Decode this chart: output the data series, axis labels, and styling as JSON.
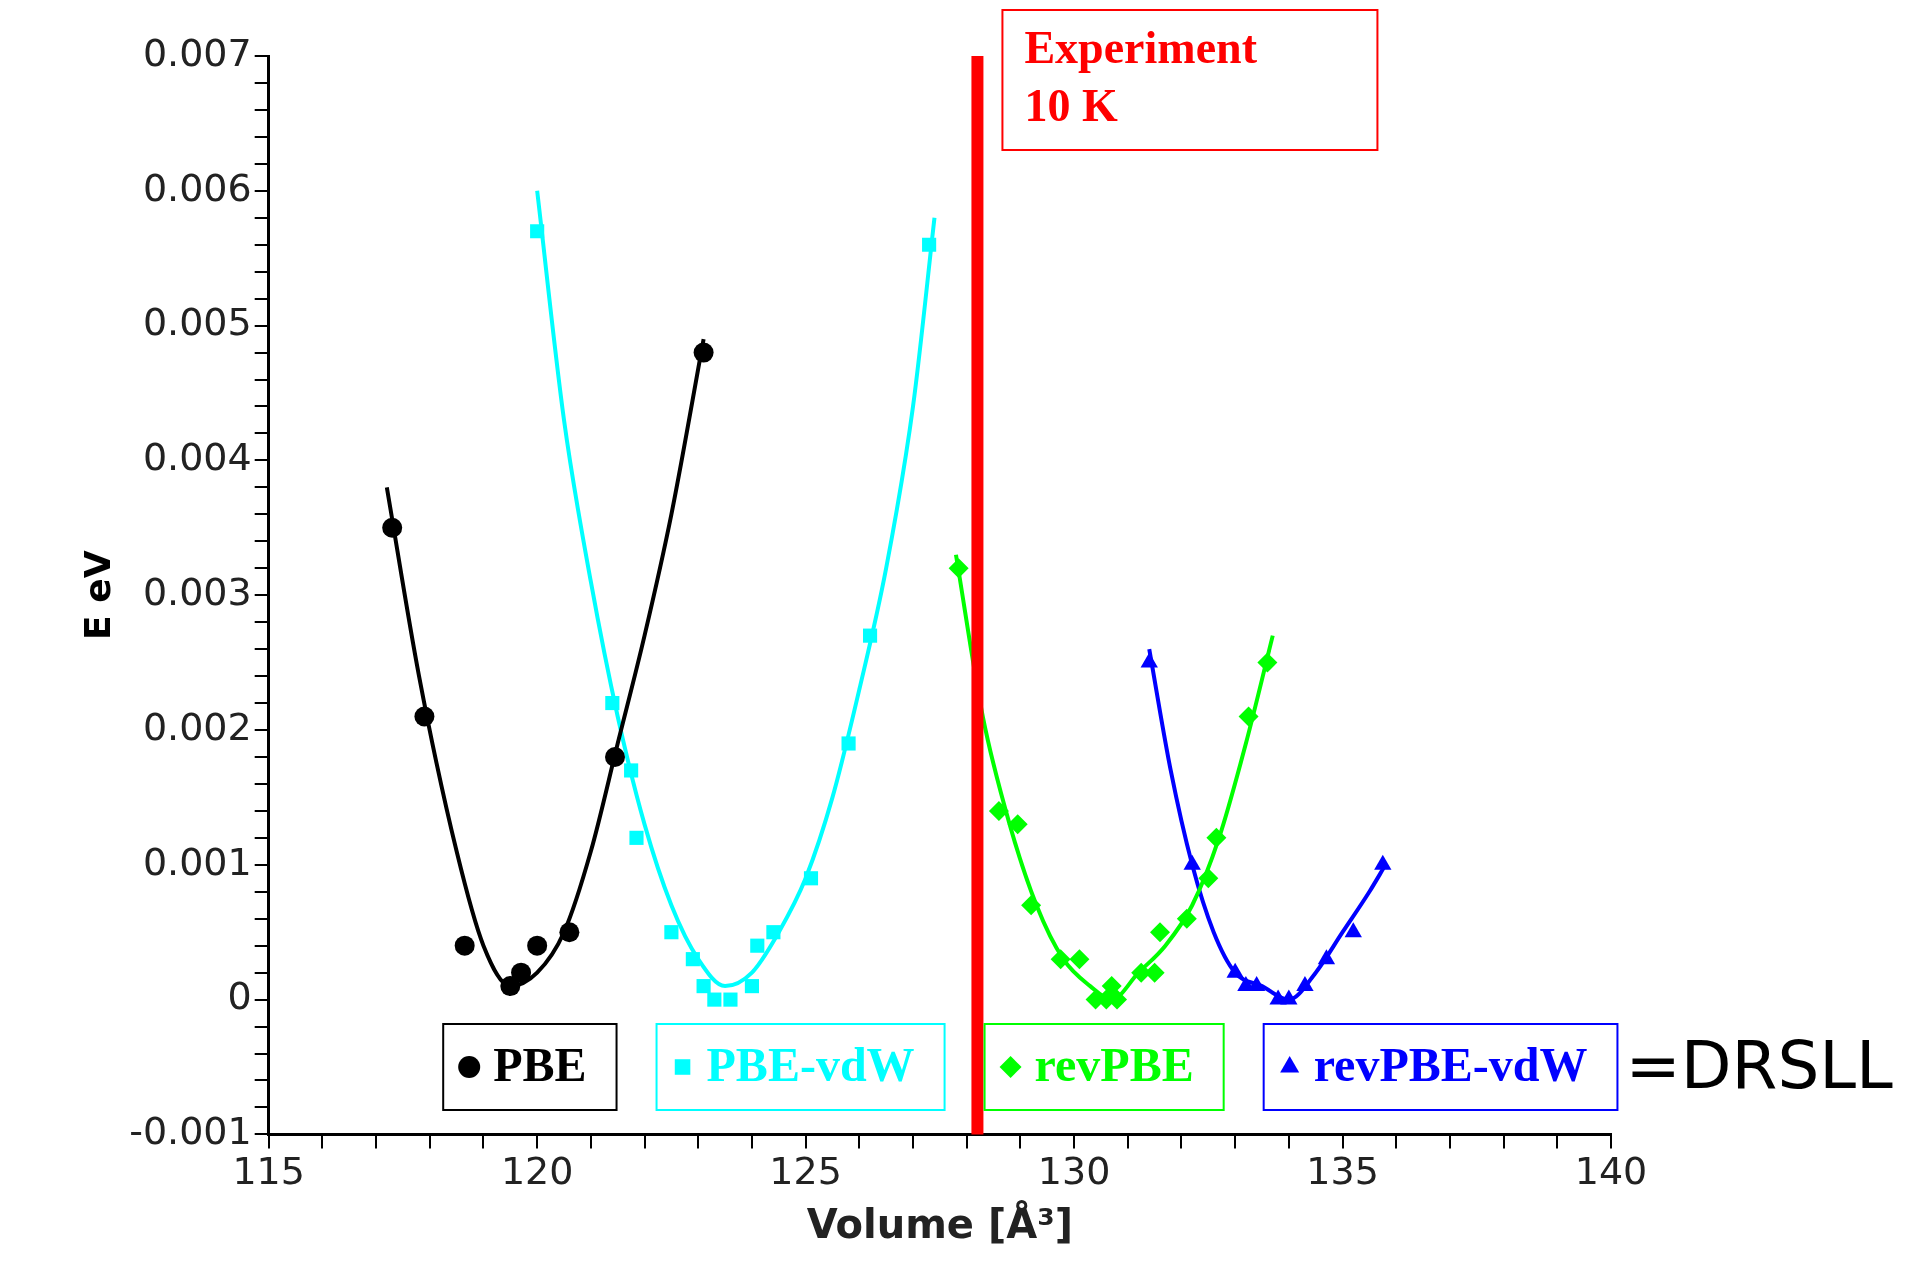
{
  "chart_data": {
    "type": "scatter",
    "xlabel": "Volume [Å³]",
    "ylabel": "E eV",
    "xlim": [
      115,
      140
    ],
    "ylim": [
      -0.001,
      0.007
    ],
    "xticks": [
      115,
      {
        "value": 116,
        "label": null
      },
      {
        "value": 117,
        "label": null
      },
      {
        "value": 118,
        "label": null
      },
      {
        "value": 119,
        "label": null
      },
      120,
      {
        "value": 121,
        "label": null
      },
      {
        "value": 122,
        "label": null
      },
      {
        "value": 123,
        "label": null
      },
      {
        "value": 124,
        "label": null
      },
      125,
      {
        "value": 126,
        "label": null
      },
      {
        "value": 127,
        "label": null
      },
      {
        "value": 128,
        "label": null
      },
      {
        "value": 129,
        "label": null
      },
      130,
      {
        "value": 131,
        "label": null
      },
      {
        "value": 132,
        "label": null
      },
      {
        "value": 133,
        "label": null
      },
      {
        "value": 134,
        "label": null
      },
      135,
      {
        "value": 136,
        "label": null
      },
      {
        "value": 137,
        "label": null
      },
      {
        "value": 138,
        "label": null
      },
      {
        "value": 139,
        "label": null
      },
      140
    ],
    "yticks": [
      -0.001,
      {
        "value": -0.0008,
        "label": null
      },
      {
        "value": -0.0006,
        "label": null
      },
      {
        "value": -0.0004,
        "label": null
      },
      {
        "value": -0.0002,
        "label": null
      },
      0,
      {
        "value": 0.0002,
        "label": null
      },
      {
        "value": 0.0004,
        "label": null
      },
      {
        "value": 0.0006,
        "label": null
      },
      {
        "value": 0.0008,
        "label": null
      },
      0.001,
      {
        "value": 0.0012,
        "label": null
      },
      {
        "value": 0.0014,
        "label": null
      },
      {
        "value": 0.0016,
        "label": null
      },
      {
        "value": 0.0018,
        "label": null
      },
      0.002,
      {
        "value": 0.0022,
        "label": null
      },
      {
        "value": 0.0024,
        "label": null
      },
      {
        "value": 0.0026,
        "label": null
      },
      {
        "value": 0.0028,
        "label": null
      },
      0.003,
      {
        "value": 0.0032,
        "label": null
      },
      {
        "value": 0.0034,
        "label": null
      },
      {
        "value": 0.0036,
        "label": null
      },
      {
        "value": 0.0038,
        "label": null
      },
      0.004,
      {
        "value": 0.0042,
        "label": null
      },
      {
        "value": 0.0044,
        "label": null
      },
      {
        "value": 0.0046,
        "label": null
      },
      {
        "value": 0.0048,
        "label": null
      },
      0.005,
      {
        "value": 0.0052,
        "label": null
      },
      {
        "value": 0.0054,
        "label": null
      },
      {
        "value": 0.0056,
        "label": null
      },
      {
        "value": 0.0058,
        "label": null
      },
      0.006,
      {
        "value": 0.0062,
        "label": null
      },
      {
        "value": 0.0064,
        "label": null
      },
      {
        "value": 0.0066,
        "label": null
      },
      {
        "value": 0.0068,
        "label": null
      },
      0.007
    ],
    "grid": false,
    "legend": "bottom",
    "series": [
      {
        "type": "line",
        "color": "#000000",
        "marker": "none",
        "x": [
          117.2,
          117.8,
          118.5,
          119.0,
          119.5,
          120.0,
          120.5,
          121.0,
          121.5,
          122.0,
          122.5,
          123.1
        ],
        "values": [
          0.0038,
          0.0024,
          0.0011,
          0.0004,
          0.0001,
          0.0002,
          0.0005,
          0.0011,
          0.0019,
          0.0027,
          0.0036,
          0.0049
        ]
      },
      {
        "type": "line",
        "color": "#00ffff",
        "marker": "none",
        "x": [
          120.0,
          120.5,
          121.0,
          121.5,
          122.0,
          122.5,
          123.0,
          123.5,
          124.0,
          124.5,
          125.0,
          125.5,
          126.0,
          126.5,
          127.0,
          127.4
        ],
        "values": [
          0.006,
          0.0043,
          0.0031,
          0.0021,
          0.0013,
          0.0007,
          0.0003,
          0.0001,
          0.0002,
          0.0005,
          0.0009,
          0.0015,
          0.0023,
          0.0032,
          0.0044,
          0.0058
        ]
      },
      {
        "type": "line",
        "color": "#00ff00",
        "marker": "none",
        "x": [
          127.8,
          128.3,
          128.8,
          129.3,
          129.8,
          130.3,
          130.7,
          131.2,
          131.7,
          132.2,
          132.7,
          133.2,
          133.7
        ],
        "values": [
          0.0033,
          0.0021,
          0.0013,
          0.0007,
          0.0003,
          0.0001,
          0.0,
          0.0002,
          0.0004,
          0.0007,
          0.0012,
          0.0019,
          0.0027
        ]
      },
      {
        "type": "line",
        "color": "#0000ff",
        "marker": "none",
        "x": [
          131.4,
          131.8,
          132.2,
          132.6,
          133.0,
          133.5,
          134.0,
          134.5,
          135.0,
          135.5,
          135.8
        ],
        "values": [
          0.0026,
          0.0017,
          0.001,
          0.0005,
          0.0002,
          0.0001,
          0.0,
          0.0002,
          0.0005,
          0.0008,
          0.001
        ]
      },
      {
        "name": "PBE",
        "color": "#000000",
        "marker": "circle",
        "x": [
          117.3,
          117.9,
          118.65,
          119.5,
          119.7,
          120.0,
          120.6,
          121.45,
          123.1
        ],
        "values": [
          0.0035,
          0.0021,
          0.0004,
          0.0001,
          0.0002,
          0.0004,
          0.0005,
          0.0018,
          0.0048
        ]
      },
      {
        "name": "PBE-vdW",
        "color": "#00ffff",
        "marker": "square",
        "x": [
          120.0,
          121.4,
          121.75,
          121.85,
          122.5,
          122.9,
          123.1,
          123.3,
          123.6,
          124.0,
          124.1,
          124.4,
          125.1,
          125.8,
          126.2,
          127.3
        ],
        "values": [
          0.0057,
          0.0022,
          0.0017,
          0.0012,
          0.0005,
          0.0003,
          0.0001,
          0.0,
          0.0,
          0.0001,
          0.0004,
          0.0005,
          0.0009,
          0.0019,
          0.0027,
          0.0056
        ]
      },
      {
        "name": "revPBE",
        "color": "#00ff00",
        "marker": "diamond",
        "x": [
          127.85,
          128.6,
          128.95,
          129.2,
          129.75,
          130.1,
          130.4,
          130.6,
          130.7,
          130.8,
          131.25,
          131.5,
          131.6,
          132.1,
          132.5,
          132.65,
          133.25,
          133.6
        ],
        "values": [
          0.0032,
          0.0014,
          0.0013,
          0.0007,
          0.0003,
          0.0003,
          0.0,
          0.0,
          0.0001,
          0.0,
          0.0002,
          0.0002,
          0.0005,
          0.0006,
          0.0009,
          0.0012,
          0.0021,
          0.0025
        ]
      },
      {
        "name": "revPBE-vdW",
        "color": "#0000ff",
        "marker": "triangle",
        "x": [
          131.4,
          132.2,
          133.0,
          133.2,
          133.4,
          133.8,
          134.0,
          134.3,
          134.7,
          135.2,
          135.75
        ],
        "values": [
          0.0025,
          0.001,
          0.0002,
          0.0001,
          0.0001,
          0.0,
          0.0,
          0.0001,
          0.0003,
          0.0005,
          0.001
        ]
      }
    ],
    "ref_lines": [
      {
        "axis": "x",
        "value": 128.2,
        "label": "Experiment 10 K",
        "color": "#ff0000"
      }
    ],
    "annotations": [
      "=DRSLL"
    ]
  }
}
